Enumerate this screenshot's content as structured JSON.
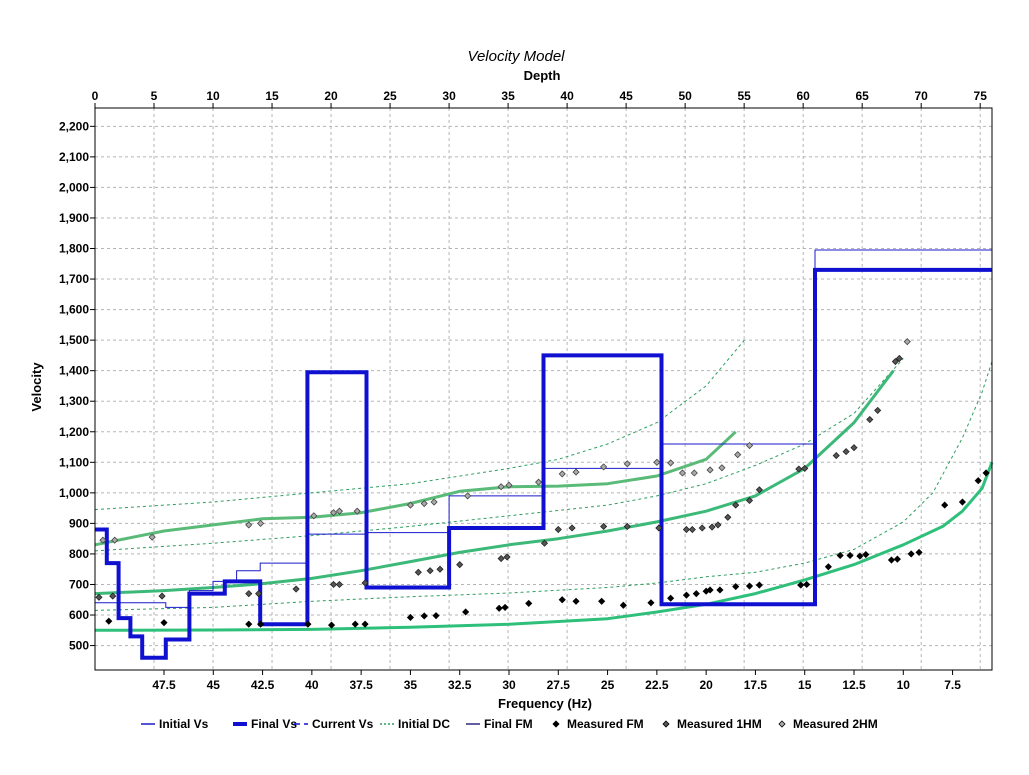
{
  "chart_data": {
    "type": "line",
    "title": "Velocity Model",
    "top_axis": {
      "label": "Depth",
      "range": [
        0,
        76
      ],
      "ticks": [
        0,
        5,
        10,
        15,
        20,
        25,
        30,
        35,
        40,
        45,
        50,
        55,
        60,
        65,
        70,
        75
      ],
      "tick_labels": [
        "0",
        "5",
        "10",
        "15",
        "20",
        "25",
        "30",
        "35",
        "40",
        "45",
        "50",
        "55",
        "60",
        "65",
        "70",
        "75"
      ]
    },
    "bottom_axis": {
      "label": "Frequency (Hz)",
      "range": [
        51,
        5.5
      ],
      "ticks": [
        47.5,
        45,
        42.5,
        40,
        37.5,
        35,
        32.5,
        30,
        27.5,
        25,
        22.5,
        20,
        17.5,
        15,
        12.5,
        10,
        7.5
      ],
      "tick_labels": [
        "47.5",
        "45",
        "42.5",
        "40",
        "37.5",
        "35",
        "32.5",
        "30",
        "27.5",
        "25",
        "22.5",
        "20",
        "17.5",
        "15",
        "12.5",
        "10",
        "7.5"
      ]
    },
    "y_axis": {
      "label": "Velocity",
      "range": [
        420,
        2260
      ],
      "ticks": [
        500,
        600,
        700,
        800,
        900,
        1000,
        1100,
        1200,
        1300,
        1400,
        1500,
        1600,
        1700,
        1800,
        1900,
        2000,
        2100,
        2200
      ],
      "tick_labels": [
        "500",
        "600",
        "700",
        "800",
        "900",
        "1,000",
        "1,100",
        "1,200",
        "1,300",
        "1,400",
        "1,500",
        "1,600",
        "1,700",
        "1,800",
        "1,900",
        "2,000",
        "2,100",
        "2,200"
      ]
    },
    "grid": true,
    "legend_position": "bottom",
    "legend": [
      {
        "name": "Initial Vs",
        "style": "thin-line",
        "color": "#1a1acc"
      },
      {
        "name": "Final Vs",
        "style": "thick-line",
        "color": "#1010d0"
      },
      {
        "name": "Current Vs",
        "style": "dash",
        "color": "#1010d0"
      },
      {
        "name": "Initial DC",
        "style": "dotted-line",
        "color": "#2e9e5e"
      },
      {
        "name": "Final FM",
        "style": "line",
        "color": "#2a2a80"
      },
      {
        "name": "Measured FM",
        "style": "diamond",
        "color": "#000000"
      },
      {
        "name": "Measured 1HM",
        "style": "diamond",
        "color": "#555555"
      },
      {
        "name": "Measured 2HM",
        "style": "diamond",
        "color": "#aaaaaa"
      }
    ],
    "initial_vs": {
      "color": "#1a1acc",
      "depth_top": [
        0,
        1,
        3,
        6,
        8,
        10,
        12,
        14,
        18,
        23,
        30,
        38,
        48,
        61,
        76
      ],
      "velocity": [
        640,
        640,
        640,
        625,
        680,
        710,
        745,
        770,
        865,
        870,
        990,
        1080,
        1160,
        1795,
        1795
      ]
    },
    "final_vs": {
      "color": "#1010d0",
      "depth_top": [
        0,
        1,
        2,
        3,
        4,
        5,
        6,
        8,
        11,
        14,
        18,
        23,
        30,
        38,
        48,
        61,
        76
      ],
      "velocity": [
        880,
        770,
        590,
        530,
        460,
        460,
        520,
        670,
        710,
        570,
        1395,
        690,
        885,
        1450,
        635,
        1730,
        1730
      ]
    },
    "dispersion_curves_frequency_hz": {
      "fundamental_mode": {
        "color": "#2ec07a",
        "points": [
          [
            51,
            550
          ],
          [
            45,
            551
          ],
          [
            40,
            553
          ],
          [
            35,
            560
          ],
          [
            30,
            570
          ],
          [
            25,
            588
          ],
          [
            22.5,
            610
          ],
          [
            20,
            635
          ],
          [
            17.5,
            670
          ],
          [
            15,
            715
          ],
          [
            12.5,
            765
          ],
          [
            10,
            830
          ],
          [
            8,
            890
          ],
          [
            7,
            940
          ],
          [
            6,
            1015
          ],
          [
            5.5,
            1100
          ]
        ]
      },
      "first_higher_mode": {
        "color": "#3cb878",
        "points": [
          [
            51,
            670
          ],
          [
            47.5,
            680
          ],
          [
            45,
            690
          ],
          [
            42.5,
            703
          ],
          [
            40,
            720
          ],
          [
            37.5,
            745
          ],
          [
            35,
            775
          ],
          [
            32.5,
            805
          ],
          [
            30,
            830
          ],
          [
            27.5,
            850
          ],
          [
            25,
            875
          ],
          [
            22.5,
            905
          ],
          [
            20,
            940
          ],
          [
            17.5,
            990
          ],
          [
            15,
            1080
          ],
          [
            12.5,
            1230
          ],
          [
            10.5,
            1400
          ]
        ]
      },
      "second_higher_mode": {
        "color": "#5aba78",
        "points": [
          [
            51,
            830
          ],
          [
            47.5,
            875
          ],
          [
            45,
            895
          ],
          [
            42.5,
            915
          ],
          [
            40,
            920
          ],
          [
            37.5,
            935
          ],
          [
            35,
            965
          ],
          [
            32.5,
            1005
          ],
          [
            30,
            1020
          ],
          [
            27.5,
            1022
          ],
          [
            25,
            1030
          ],
          [
            22.5,
            1055
          ],
          [
            20,
            1110
          ],
          [
            18.5,
            1200
          ]
        ]
      },
      "initial_dc_fundamental": {
        "color": "#2e9e5e",
        "points": [
          [
            51,
            615
          ],
          [
            45,
            625
          ],
          [
            40,
            645
          ],
          [
            35,
            660
          ],
          [
            30,
            672
          ],
          [
            25,
            690
          ],
          [
            22.5,
            705
          ],
          [
            20,
            725
          ],
          [
            17.5,
            740
          ],
          [
            15,
            770
          ],
          [
            12.5,
            815
          ],
          [
            10,
            905
          ],
          [
            8.5,
            1000
          ],
          [
            7,
            1180
          ],
          [
            6,
            1330
          ],
          [
            5.5,
            1430
          ]
        ]
      },
      "initial_dc_first_higher": {
        "color": "#2e9e5e",
        "points": [
          [
            51,
            810
          ],
          [
            45,
            835
          ],
          [
            40,
            860
          ],
          [
            35,
            890
          ],
          [
            30,
            925
          ],
          [
            25,
            960
          ],
          [
            22.5,
            990
          ],
          [
            20,
            1030
          ],
          [
            17.5,
            1090
          ],
          [
            15,
            1160
          ],
          [
            12.5,
            1260
          ],
          [
            10,
            1440
          ]
        ]
      },
      "initial_dc_second_higher": {
        "color": "#2e9e5e",
        "points": [
          [
            51,
            945
          ],
          [
            45,
            970
          ],
          [
            40,
            1000
          ],
          [
            35,
            1030
          ],
          [
            30,
            1080
          ],
          [
            27.5,
            1110
          ],
          [
            25,
            1160
          ],
          [
            22.5,
            1230
          ],
          [
            20,
            1350
          ],
          [
            18,
            1505
          ]
        ]
      },
      "measured_fm": {
        "color": "#000000",
        "points": [
          [
            50.3,
            580
          ],
          [
            47.5,
            575
          ],
          [
            43.2,
            570
          ],
          [
            42.6,
            570
          ],
          [
            40.2,
            570
          ],
          [
            39,
            567
          ],
          [
            37.8,
            570
          ],
          [
            37.3,
            570
          ],
          [
            35,
            592
          ],
          [
            34.3,
            597
          ],
          [
            33.7,
            598
          ],
          [
            32.2,
            610
          ],
          [
            30.5,
            622
          ],
          [
            30.2,
            625
          ],
          [
            29,
            638
          ],
          [
            27.3,
            650
          ],
          [
            26.6,
            645
          ],
          [
            25.3,
            645
          ],
          [
            24.2,
            632
          ],
          [
            22.8,
            640
          ],
          [
            21.8,
            655
          ],
          [
            21,
            665
          ],
          [
            20.5,
            670
          ],
          [
            20,
            678
          ],
          [
            19.8,
            682
          ],
          [
            19.3,
            682
          ],
          [
            18.5,
            693
          ],
          [
            17.8,
            695
          ],
          [
            17.3,
            698
          ],
          [
            15.2,
            698
          ],
          [
            14.9,
            700
          ],
          [
            13.8,
            758
          ],
          [
            13.2,
            795
          ],
          [
            12.7,
            795
          ],
          [
            12.2,
            793
          ],
          [
            11.9,
            798
          ],
          [
            10.6,
            780
          ],
          [
            10.3,
            783
          ],
          [
            9.6,
            800
          ],
          [
            9.2,
            805
          ],
          [
            7.9,
            960
          ],
          [
            7,
            970
          ],
          [
            6.2,
            1040
          ],
          [
            5.8,
            1065
          ]
        ]
      },
      "measured_1hm": {
        "color": "#555555",
        "points": [
          [
            50.8,
            658
          ],
          [
            50.1,
            662
          ],
          [
            47.6,
            662
          ],
          [
            43.2,
            670
          ],
          [
            42.7,
            670
          ],
          [
            40.8,
            685
          ],
          [
            38.9,
            700
          ],
          [
            38.6,
            700
          ],
          [
            37.3,
            705
          ],
          [
            34.6,
            740
          ],
          [
            34,
            745
          ],
          [
            33.5,
            750
          ],
          [
            32.5,
            765
          ],
          [
            30.4,
            785
          ],
          [
            30.1,
            790
          ],
          [
            28.2,
            835
          ],
          [
            27.5,
            880
          ],
          [
            26.8,
            885
          ],
          [
            25.2,
            890
          ],
          [
            24,
            890
          ],
          [
            22.4,
            885
          ],
          [
            21,
            880
          ],
          [
            20.7,
            880
          ],
          [
            20.2,
            885
          ],
          [
            19.7,
            888
          ],
          [
            19.4,
            895
          ],
          [
            18.9,
            920
          ],
          [
            18.5,
            960
          ],
          [
            17.8,
            975
          ],
          [
            17.3,
            1010
          ],
          [
            15.3,
            1078
          ],
          [
            15,
            1080
          ],
          [
            13.4,
            1122
          ],
          [
            12.9,
            1135
          ],
          [
            12.5,
            1148
          ],
          [
            11.7,
            1240
          ],
          [
            11.3,
            1270
          ],
          [
            10.4,
            1430
          ],
          [
            10.2,
            1440
          ]
        ]
      },
      "measured_2hm": {
        "color": "#aaaaaa",
        "points": [
          [
            50.6,
            845
          ],
          [
            50,
            845
          ],
          [
            48.1,
            855
          ],
          [
            43.2,
            895
          ],
          [
            42.6,
            900
          ],
          [
            39.9,
            925
          ],
          [
            38.9,
            935
          ],
          [
            38.6,
            940
          ],
          [
            37.7,
            940
          ],
          [
            35,
            960
          ],
          [
            34.3,
            965
          ],
          [
            33.8,
            970
          ],
          [
            32.1,
            990
          ],
          [
            30.4,
            1020
          ],
          [
            30,
            1025
          ],
          [
            28.5,
            1035
          ],
          [
            27.3,
            1062
          ],
          [
            26.6,
            1068
          ],
          [
            25.2,
            1085
          ],
          [
            24,
            1095
          ],
          [
            22.5,
            1100
          ],
          [
            21.8,
            1098
          ],
          [
            21.2,
            1065
          ],
          [
            20.6,
            1065
          ],
          [
            19.8,
            1075
          ],
          [
            19.2,
            1082
          ],
          [
            18.4,
            1125
          ],
          [
            17.8,
            1155
          ],
          [
            9.8,
            1495
          ]
        ]
      }
    }
  }
}
